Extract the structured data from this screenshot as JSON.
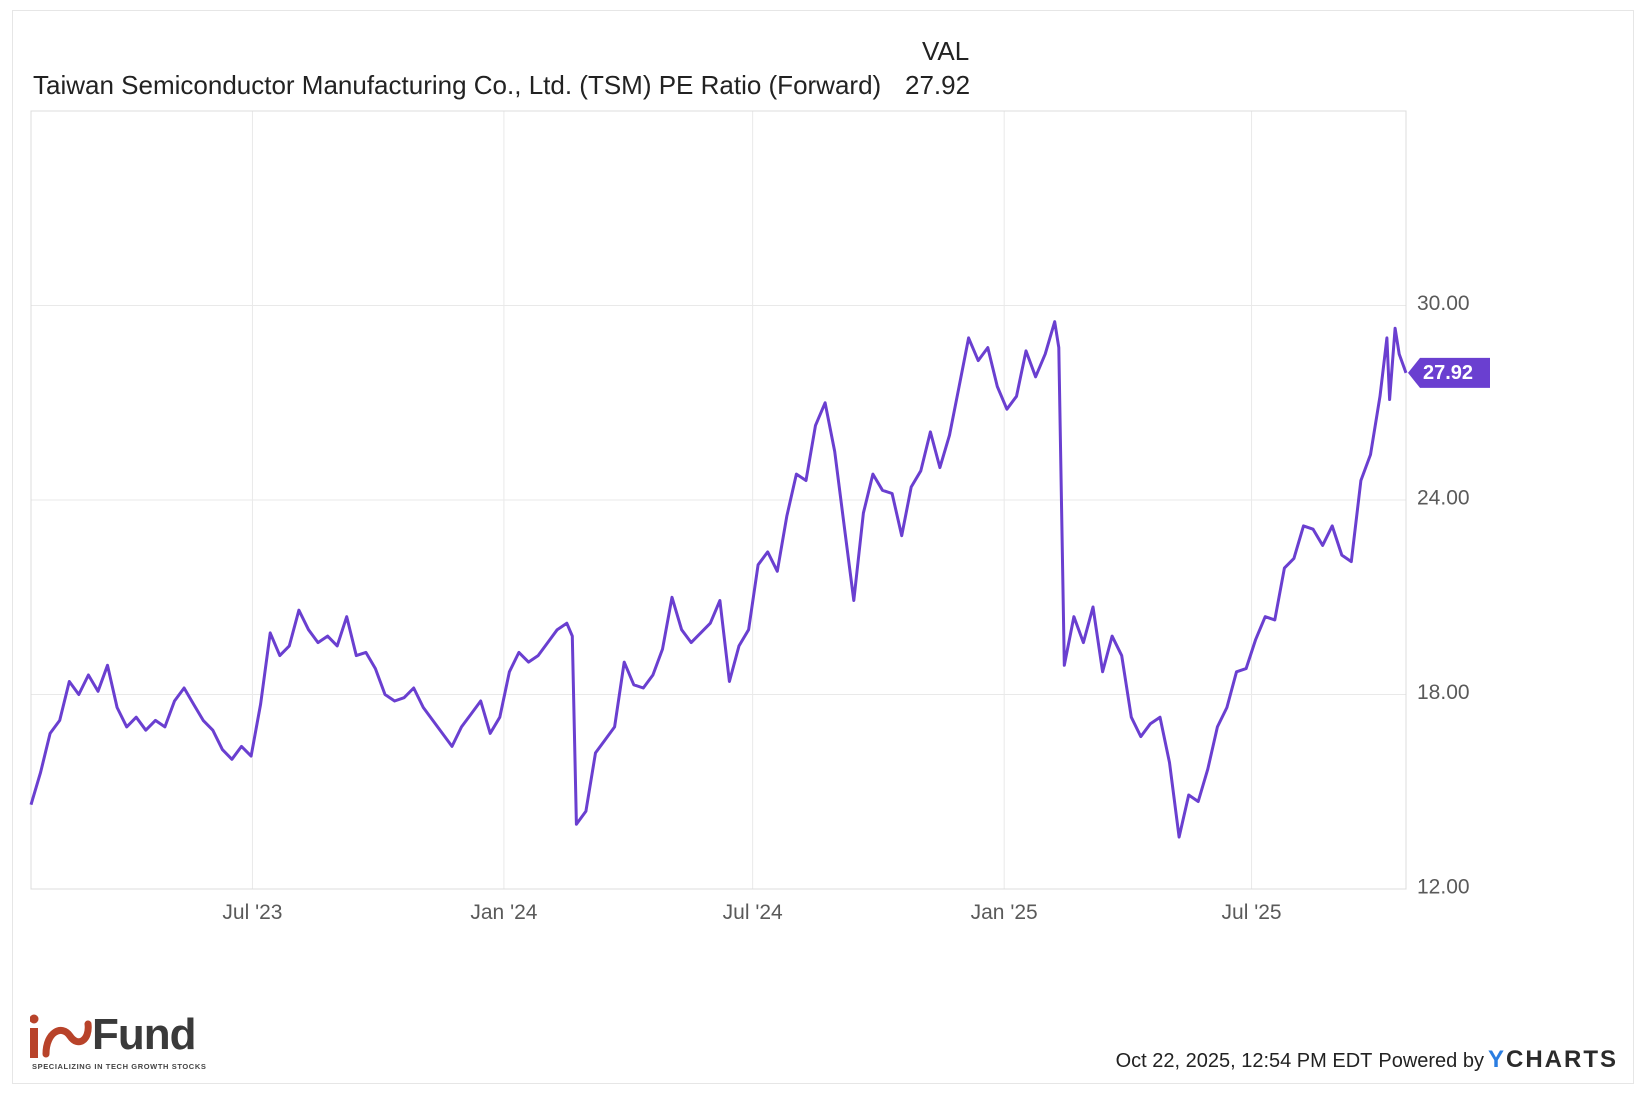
{
  "legend": {
    "column_header": "VAL",
    "series_name": "Taiwan Semiconductor Manufacturing Co., Ltd. (TSM) PE Ratio (Forward)",
    "series_value": "27.92"
  },
  "colors": {
    "line": "#6a3fd0",
    "badge": "#6a3fd0",
    "grid": "#e9e9e9",
    "axis_text": "#5a5a5a"
  },
  "chart_data": {
    "type": "line",
    "title": "Taiwan Semiconductor Manufacturing Co., Ltd. (TSM) PE Ratio (Forward)",
    "xlabel": "",
    "ylabel": "",
    "x_range": [
      "2023-01-20",
      "2025-10-22"
    ],
    "ylim": [
      12,
      36
    ],
    "y_ticks": [
      {
        "value": 12,
        "label": "12.00"
      },
      {
        "value": 18,
        "label": "18.00"
      },
      {
        "value": 24,
        "label": "24.00"
      },
      {
        "value": 30,
        "label": "30.00"
      }
    ],
    "x_ticks": [
      {
        "date": "2023-07-01",
        "label": "Jul '23"
      },
      {
        "date": "2024-01-01",
        "label": "Jan '24"
      },
      {
        "date": "2024-07-01",
        "label": "Jul '24"
      },
      {
        "date": "2025-01-01",
        "label": "Jan '25"
      },
      {
        "date": "2025-07-01",
        "label": "Jul '25"
      }
    ],
    "grid": true,
    "last_value_label": "27.92",
    "series": [
      {
        "name": "TSM PE Ratio (Forward)",
        "points": [
          [
            "2023-01-20",
            14.6
          ],
          [
            "2023-01-27",
            15.6
          ],
          [
            "2023-02-03",
            16.8
          ],
          [
            "2023-02-10",
            17.2
          ],
          [
            "2023-02-17",
            18.4
          ],
          [
            "2023-02-24",
            18.0
          ],
          [
            "2023-03-03",
            18.6
          ],
          [
            "2023-03-10",
            18.1
          ],
          [
            "2023-03-17",
            18.9
          ],
          [
            "2023-03-24",
            17.6
          ],
          [
            "2023-03-31",
            17.0
          ],
          [
            "2023-04-07",
            17.3
          ],
          [
            "2023-04-14",
            16.9
          ],
          [
            "2023-04-21",
            17.2
          ],
          [
            "2023-04-28",
            17.0
          ],
          [
            "2023-05-05",
            17.8
          ],
          [
            "2023-05-12",
            18.2
          ],
          [
            "2023-05-19",
            17.7
          ],
          [
            "2023-05-26",
            17.2
          ],
          [
            "2023-06-02",
            16.9
          ],
          [
            "2023-06-09",
            16.3
          ],
          [
            "2023-06-16",
            16.0
          ],
          [
            "2023-06-23",
            16.4
          ],
          [
            "2023-06-30",
            16.1
          ],
          [
            "2023-07-07",
            17.7
          ],
          [
            "2023-07-14",
            19.9
          ],
          [
            "2023-07-21",
            19.2
          ],
          [
            "2023-07-28",
            19.5
          ],
          [
            "2023-08-04",
            20.6
          ],
          [
            "2023-08-11",
            20.0
          ],
          [
            "2023-08-18",
            19.6
          ],
          [
            "2023-08-25",
            19.8
          ],
          [
            "2023-09-01",
            19.5
          ],
          [
            "2023-09-08",
            20.4
          ],
          [
            "2023-09-15",
            19.2
          ],
          [
            "2023-09-22",
            19.3
          ],
          [
            "2023-09-29",
            18.8
          ],
          [
            "2023-10-06",
            18.0
          ],
          [
            "2023-10-13",
            17.8
          ],
          [
            "2023-10-20",
            17.9
          ],
          [
            "2023-10-27",
            18.2
          ],
          [
            "2023-11-03",
            17.6
          ],
          [
            "2023-11-10",
            17.2
          ],
          [
            "2023-11-17",
            16.8
          ],
          [
            "2023-11-24",
            16.4
          ],
          [
            "2023-12-01",
            17.0
          ],
          [
            "2023-12-08",
            17.4
          ],
          [
            "2023-12-15",
            17.8
          ],
          [
            "2023-12-22",
            16.8
          ],
          [
            "2023-12-29",
            17.3
          ],
          [
            "2024-01-05",
            18.7
          ],
          [
            "2024-01-12",
            19.3
          ],
          [
            "2024-01-19",
            19.0
          ],
          [
            "2024-01-26",
            19.2
          ],
          [
            "2024-02-02",
            19.6
          ],
          [
            "2024-02-09",
            20.0
          ],
          [
            "2024-02-16",
            20.2
          ],
          [
            "2024-02-20",
            19.8
          ],
          [
            "2024-02-23",
            14.0
          ],
          [
            "2024-03-01",
            14.4
          ],
          [
            "2024-03-08",
            16.2
          ],
          [
            "2024-03-15",
            16.6
          ],
          [
            "2024-03-22",
            17.0
          ],
          [
            "2024-03-29",
            19.0
          ],
          [
            "2024-04-05",
            18.3
          ],
          [
            "2024-04-12",
            18.2
          ],
          [
            "2024-04-19",
            18.6
          ],
          [
            "2024-04-26",
            19.4
          ],
          [
            "2024-05-03",
            21.0
          ],
          [
            "2024-05-10",
            20.0
          ],
          [
            "2024-05-17",
            19.6
          ],
          [
            "2024-05-24",
            19.9
          ],
          [
            "2024-05-31",
            20.2
          ],
          [
            "2024-06-07",
            20.9
          ],
          [
            "2024-06-14",
            18.4
          ],
          [
            "2024-06-21",
            19.5
          ],
          [
            "2024-06-28",
            20.0
          ],
          [
            "2024-07-05",
            22.0
          ],
          [
            "2024-07-12",
            22.4
          ],
          [
            "2024-07-19",
            21.8
          ],
          [
            "2024-07-26",
            23.5
          ],
          [
            "2024-08-02",
            24.8
          ],
          [
            "2024-08-09",
            24.6
          ],
          [
            "2024-08-16",
            26.3
          ],
          [
            "2024-08-23",
            27.0
          ],
          [
            "2024-08-30",
            25.5
          ],
          [
            "2024-09-06",
            23.2
          ],
          [
            "2024-09-13",
            20.9
          ],
          [
            "2024-09-20",
            23.6
          ],
          [
            "2024-09-27",
            24.8
          ],
          [
            "2024-10-04",
            24.3
          ],
          [
            "2024-10-11",
            24.2
          ],
          [
            "2024-10-18",
            22.9
          ],
          [
            "2024-10-25",
            24.4
          ],
          [
            "2024-11-01",
            24.9
          ],
          [
            "2024-11-08",
            26.1
          ],
          [
            "2024-11-15",
            25.0
          ],
          [
            "2024-11-22",
            26.0
          ],
          [
            "2024-11-29",
            27.5
          ],
          [
            "2024-12-06",
            29.0
          ],
          [
            "2024-12-13",
            28.3
          ],
          [
            "2024-12-20",
            28.7
          ],
          [
            "2024-12-27",
            27.5
          ],
          [
            "2025-01-03",
            26.8
          ],
          [
            "2025-01-10",
            27.2
          ],
          [
            "2025-01-17",
            28.6
          ],
          [
            "2025-01-24",
            27.8
          ],
          [
            "2025-01-31",
            28.5
          ],
          [
            "2025-02-07",
            29.5
          ],
          [
            "2025-02-10",
            28.7
          ],
          [
            "2025-02-14",
            18.9
          ],
          [
            "2025-02-21",
            20.4
          ],
          [
            "2025-02-28",
            19.6
          ],
          [
            "2025-03-07",
            20.7
          ],
          [
            "2025-03-14",
            18.7
          ],
          [
            "2025-03-21",
            19.8
          ],
          [
            "2025-03-28",
            19.2
          ],
          [
            "2025-04-04",
            17.3
          ],
          [
            "2025-04-11",
            16.7
          ],
          [
            "2025-04-18",
            17.1
          ],
          [
            "2025-04-25",
            17.3
          ],
          [
            "2025-05-02",
            15.9
          ],
          [
            "2025-05-09",
            13.6
          ],
          [
            "2025-05-16",
            14.9
          ],
          [
            "2025-05-23",
            14.7
          ],
          [
            "2025-05-30",
            15.7
          ],
          [
            "2025-06-06",
            17.0
          ],
          [
            "2025-06-13",
            17.6
          ],
          [
            "2025-06-20",
            18.7
          ],
          [
            "2025-06-27",
            18.8
          ],
          [
            "2025-07-04",
            19.7
          ],
          [
            "2025-07-11",
            20.4
          ],
          [
            "2025-07-18",
            20.3
          ],
          [
            "2025-07-25",
            21.9
          ],
          [
            "2025-08-01",
            22.2
          ],
          [
            "2025-08-08",
            23.2
          ],
          [
            "2025-08-15",
            23.1
          ],
          [
            "2025-08-22",
            22.6
          ],
          [
            "2025-08-29",
            23.2
          ],
          [
            "2025-09-05",
            22.3
          ],
          [
            "2025-09-12",
            22.1
          ],
          [
            "2025-09-19",
            24.6
          ],
          [
            "2025-09-26",
            25.4
          ],
          [
            "2025-10-03",
            27.2
          ],
          [
            "2025-10-08",
            29.0
          ],
          [
            "2025-10-10",
            27.1
          ],
          [
            "2025-10-14",
            29.3
          ],
          [
            "2025-10-17",
            28.5
          ],
          [
            "2025-10-22",
            27.92
          ]
        ]
      }
    ]
  },
  "brand": {
    "logo_mark": "iO",
    "logo_word": "Fund",
    "logo_tagline": "SPECIALIZING IN TECH GROWTH STOCKS"
  },
  "footer": {
    "timestamp": "Oct 22, 2025, 12:54 PM EDT",
    "powered_by": "Powered by",
    "provider_y": "Y",
    "provider_rest": "CHARTS"
  }
}
